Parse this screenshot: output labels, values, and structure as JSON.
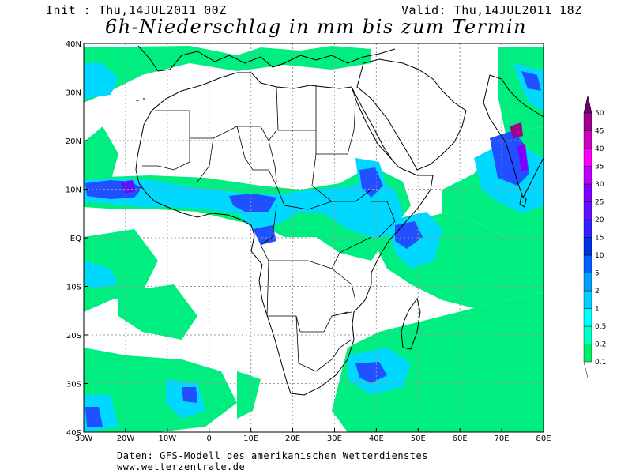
{
  "header": {
    "init": "Init : Thu,14JUL2011 00Z",
    "valid": "Valid: Thu,14JUL2011 18Z",
    "title": "6h-Niederschlag in mm bis zum Termin"
  },
  "map": {
    "lon_labels": [
      "30W",
      "20W",
      "10W",
      "0",
      "10E",
      "20E",
      "30E",
      "40E",
      "50E",
      "60E",
      "70E",
      "80E"
    ],
    "lat_labels": [
      "40N",
      "30N",
      "20N",
      "10N",
      "EQ",
      "10S",
      "20S",
      "30S",
      "40S"
    ],
    "ocean_color": "#ffffff",
    "coast_color": "#000000",
    "grid_color": "#999999"
  },
  "legend": {
    "unit": "mm",
    "levels": [
      "0.1",
      "0.2",
      "0.5",
      "1",
      "2",
      "5",
      "10",
      "15",
      "20",
      "25",
      "30",
      "35",
      "40",
      "45",
      "50"
    ],
    "colors": [
      "#00ee66",
      "#00ffc0",
      "#00ffff",
      "#00d0ff",
      "#00a0ff",
      "#0060ff",
      "#0030e0",
      "#3020ff",
      "#6010ff",
      "#8000ff",
      "#c000ff",
      "#ff00ff",
      "#d000c0",
      "#a00090",
      "#700070"
    ]
  },
  "footer": {
    "line1": "Daten: GFS-Modell des amerikanischen Wetterdienstes",
    "line2": "www.wetterzentrale.de"
  }
}
